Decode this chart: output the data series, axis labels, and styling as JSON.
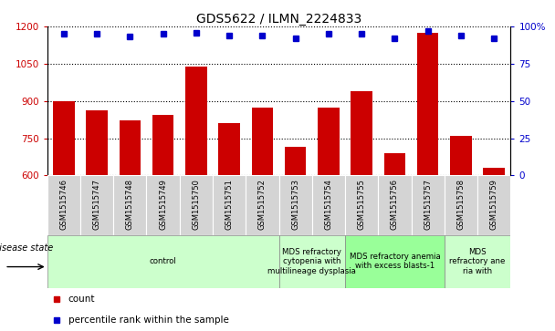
{
  "title": "GDS5622 / ILMN_2224833",
  "samples": [
    "GSM1515746",
    "GSM1515747",
    "GSM1515748",
    "GSM1515749",
    "GSM1515750",
    "GSM1515751",
    "GSM1515752",
    "GSM1515753",
    "GSM1515754",
    "GSM1515755",
    "GSM1515756",
    "GSM1515757",
    "GSM1515758",
    "GSM1515759"
  ],
  "counts": [
    900,
    862,
    820,
    845,
    1040,
    810,
    875,
    715,
    875,
    940,
    690,
    1175,
    760,
    630
  ],
  "percentiles": [
    95,
    95,
    93,
    95,
    96,
    94,
    94,
    92,
    95,
    95,
    92,
    97,
    94,
    92
  ],
  "ylim_left": [
    600,
    1200
  ],
  "ylim_right": [
    0,
    100
  ],
  "yticks_left": [
    600,
    750,
    900,
    1050,
    1200
  ],
  "yticks_right": [
    0,
    25,
    50,
    75,
    100
  ],
  "bar_color": "#cc0000",
  "dot_color": "#0000cc",
  "disease_groups": [
    {
      "label": "control",
      "start": 0,
      "end": 7,
      "color": "#ccffcc"
    },
    {
      "label": "MDS refractory\ncytopenia with\nmultilineage dysplasia",
      "start": 7,
      "end": 9,
      "color": "#ccffcc"
    },
    {
      "label": "MDS refractory anemia\nwith excess blasts-1",
      "start": 9,
      "end": 12,
      "color": "#99ff99"
    },
    {
      "label": "MDS\nrefractory ane\nria with",
      "start": 12,
      "end": 14,
      "color": "#ccffcc"
    }
  ],
  "bar_color_red": "#cc0000",
  "dot_color_blue": "#0000cc",
  "tick_bg_color": "#d8d8d8",
  "plot_bg_color": "#ffffff",
  "grid_color": "#000000"
}
